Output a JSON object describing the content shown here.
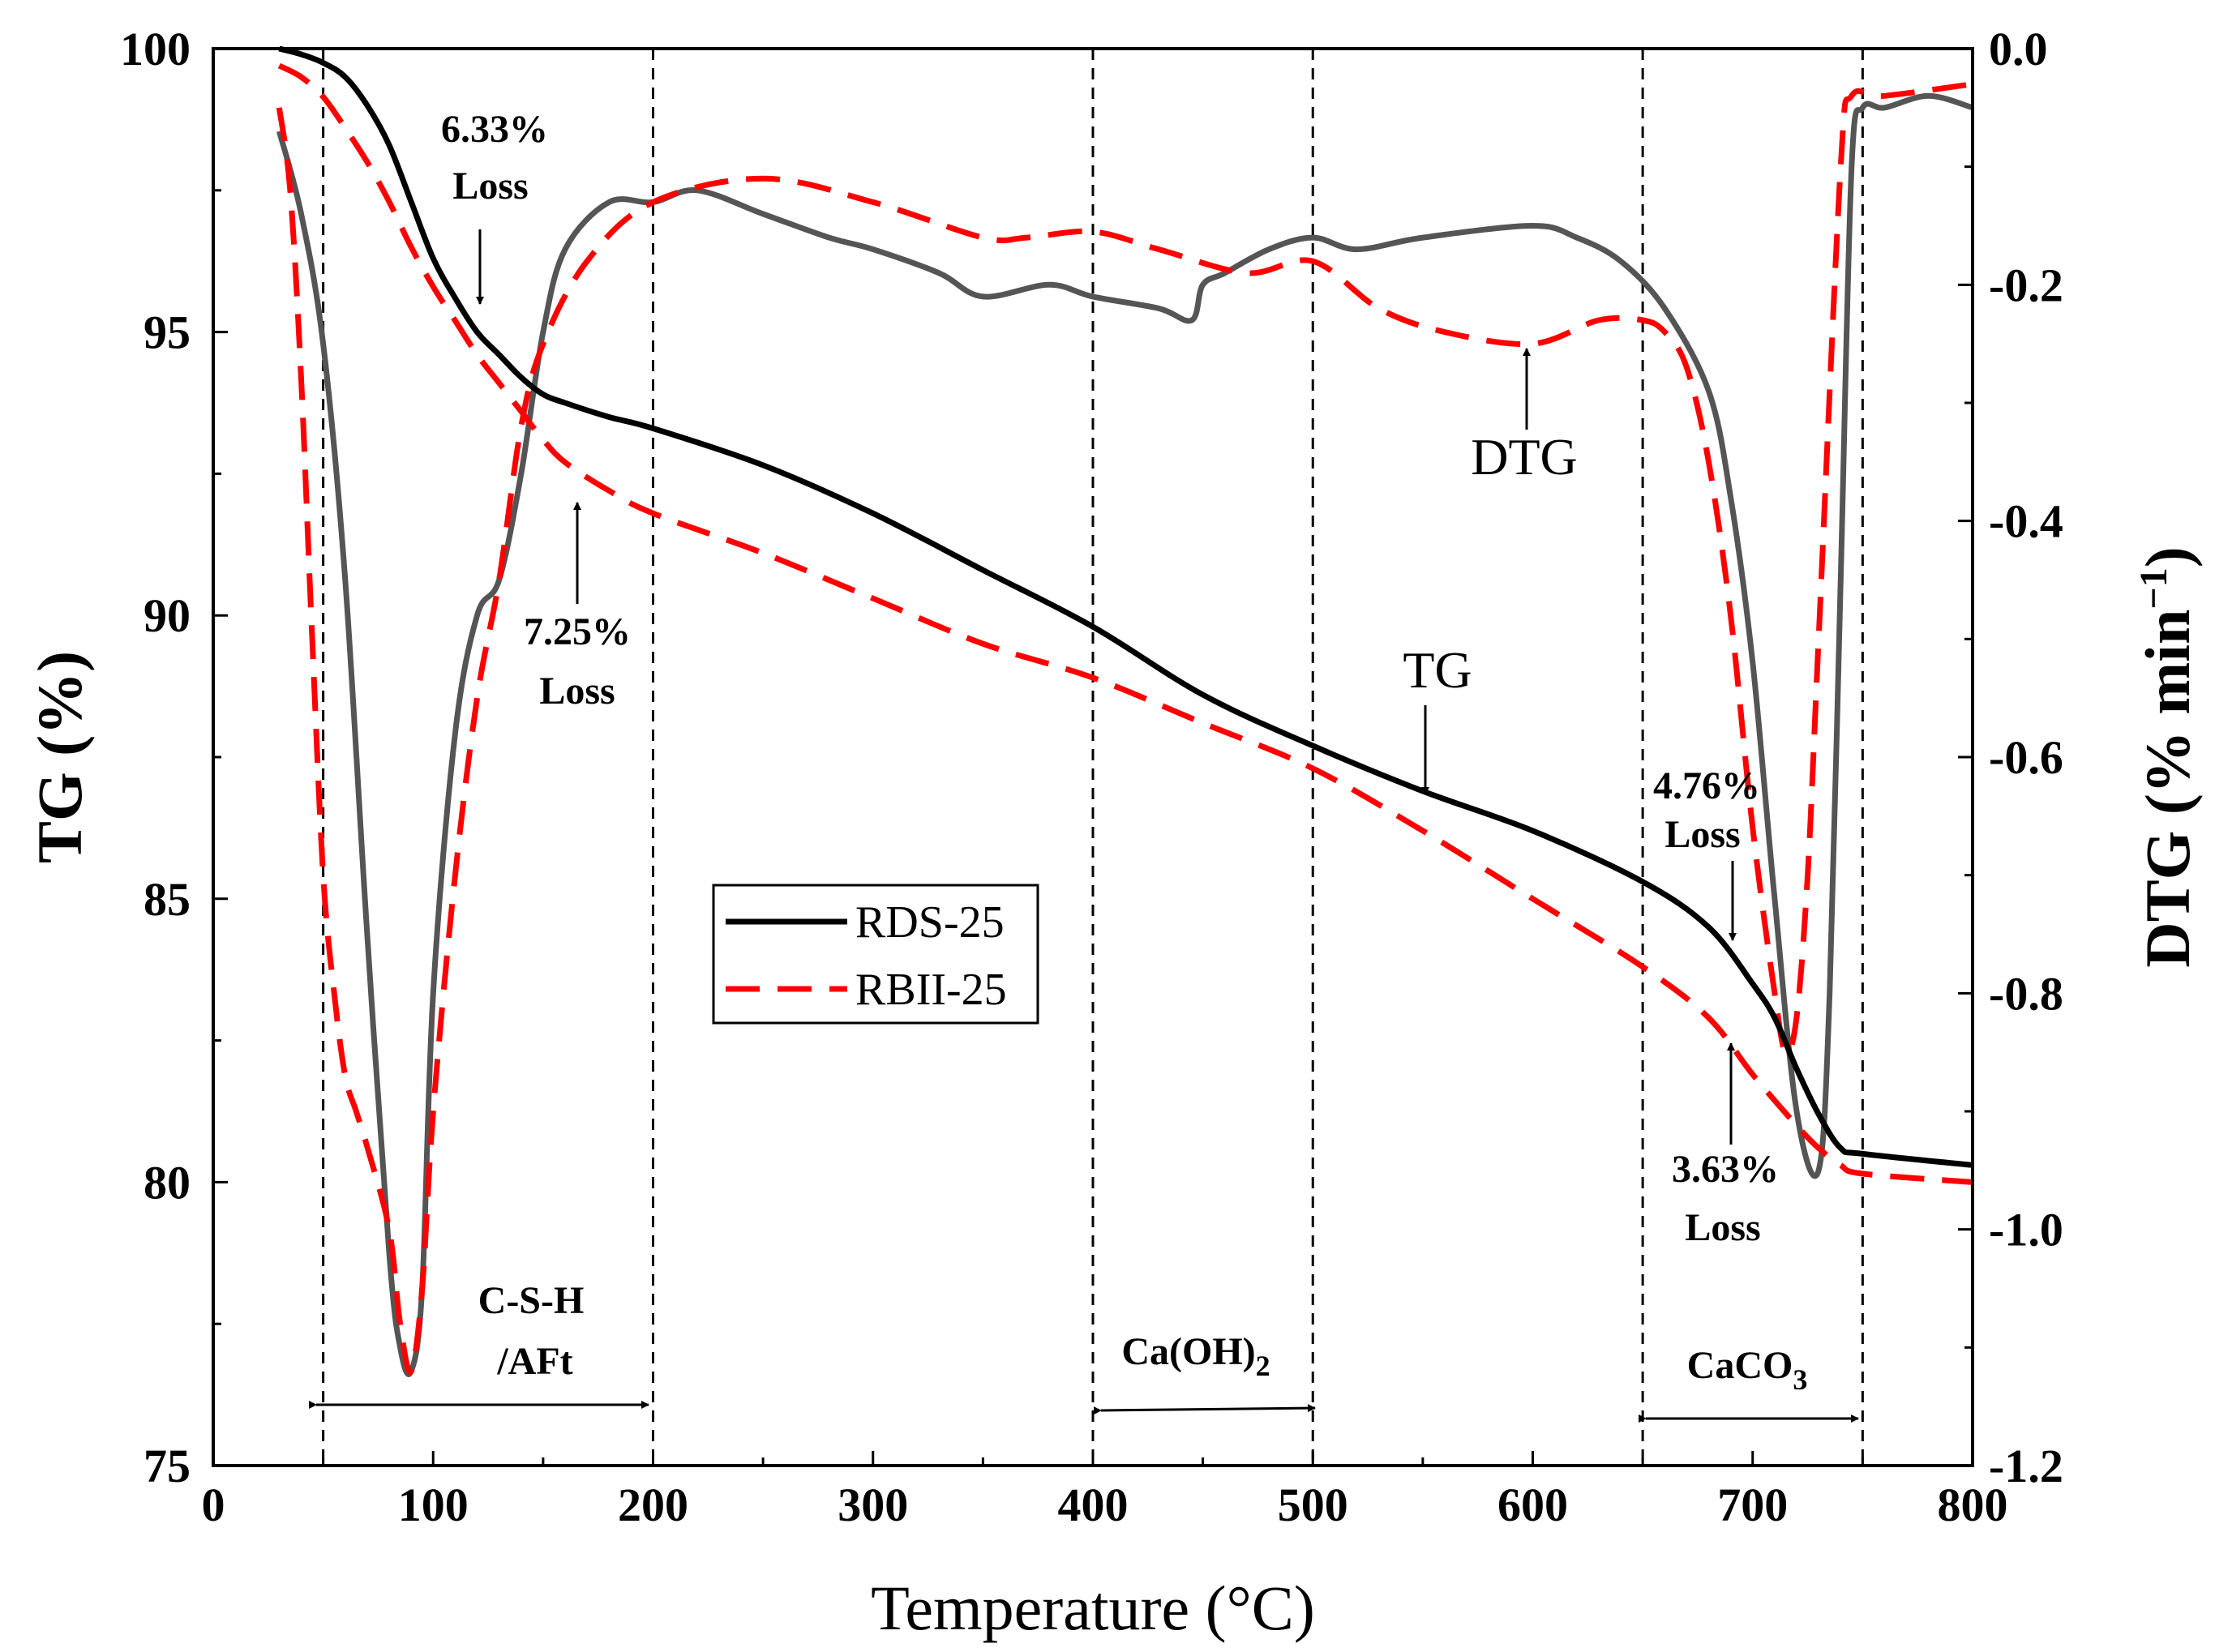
{
  "chart_data": {
    "type": "line",
    "title": "",
    "xlabel": "Temperature (°C)",
    "ylabel": "TG (%)",
    "y2label_main": "DTG (% min",
    "y2label_sup": "−1",
    "y2label_end": ")",
    "xlim": [
      0,
      800
    ],
    "ylim": [
      75,
      100
    ],
    "y2lim": [
      -1.2,
      0.0
    ],
    "xticks": [
      0,
      100,
      200,
      300,
      400,
      500,
      600,
      700,
      800
    ],
    "yticks": [
      75,
      80,
      85,
      90,
      95,
      100
    ],
    "y2ticks": [
      "0.0",
      "-0.2",
      "-0.4",
      "-0.6",
      "-0.8",
      "-1.0",
      "-1.2"
    ],
    "region_lines_x": [
      50,
      200,
      400,
      500,
      650,
      750
    ],
    "legend": [
      {
        "name": "RDS-25",
        "color": "#000000",
        "style": "solid"
      },
      {
        "name": "RBII-25",
        "color": "#ff0000",
        "style": "dashed"
      }
    ],
    "series": [
      {
        "name": "RDS-25 TG",
        "axis": "left",
        "color": "#000000",
        "style": "solid",
        "x": [
          30,
          40,
          50,
          60,
          70,
          80,
          90,
          100,
          110,
          120,
          130,
          140,
          150,
          160,
          180,
          200,
          250,
          300,
          350,
          400,
          450,
          500,
          550,
          600,
          650,
          680,
          700,
          710,
          720,
          730,
          740,
          750,
          800
        ],
        "y": [
          100,
          99.9,
          99.75,
          99.5,
          99.0,
          98.3,
          97.3,
          96.3,
          95.6,
          95.0,
          94.6,
          94.2,
          93.9,
          93.75,
          93.5,
          93.3,
          92.65,
          91.8,
          90.8,
          89.8,
          88.6,
          87.7,
          86.9,
          86.2,
          85.3,
          84.5,
          83.5,
          82.9,
          82.0,
          81.2,
          80.6,
          80.5,
          80.3
        ]
      },
      {
        "name": "RBII-25 TG",
        "axis": "left",
        "color": "#ff0000",
        "style": "dashed",
        "x": [
          30,
          40,
          50,
          60,
          70,
          80,
          90,
          100,
          110,
          120,
          130,
          140,
          150,
          160,
          180,
          200,
          250,
          300,
          350,
          400,
          450,
          500,
          550,
          600,
          650,
          680,
          700,
          720,
          730,
          740,
          750,
          800
        ],
        "y": [
          99.7,
          99.5,
          99.15,
          98.6,
          98.0,
          97.3,
          96.5,
          95.8,
          95.2,
          94.6,
          94.1,
          93.6,
          93.1,
          92.7,
          92.2,
          91.8,
          91.1,
          90.3,
          89.5,
          88.9,
          88.1,
          87.3,
          86.2,
          85.0,
          83.8,
          82.9,
          81.9,
          81.0,
          80.6,
          80.3,
          80.15,
          80.0
        ]
      },
      {
        "name": "RDS-25 DTG",
        "axis": "right",
        "color": "#555555",
        "style": "solid",
        "x": [
          30,
          40,
          50,
          60,
          70,
          80,
          85,
          90,
          95,
          100,
          110,
          120,
          130,
          140,
          150,
          160,
          180,
          200,
          220,
          250,
          280,
          300,
          330,
          350,
          380,
          400,
          430,
          445,
          450,
          460,
          480,
          500,
          520,
          550,
          600,
          620,
          640,
          660,
          680,
          690,
          700,
          710,
          720,
          730,
          735,
          740,
          745,
          750,
          760,
          780,
          800
        ],
        "y": [
          -0.07,
          -0.14,
          -0.25,
          -0.45,
          -0.75,
          -1.02,
          -1.1,
          -1.12,
          -1.05,
          -0.8,
          -0.58,
          -0.48,
          -0.45,
          -0.36,
          -0.24,
          -0.17,
          -0.13,
          -0.13,
          -0.12,
          -0.14,
          -0.16,
          -0.17,
          -0.19,
          -0.21,
          -0.2,
          -0.21,
          -0.22,
          -0.23,
          -0.2,
          -0.19,
          -0.17,
          -0.16,
          -0.17,
          -0.16,
          -0.15,
          -0.16,
          -0.18,
          -0.22,
          -0.29,
          -0.38,
          -0.52,
          -0.72,
          -0.9,
          -0.95,
          -0.8,
          -0.45,
          -0.1,
          -0.05,
          -0.05,
          -0.04,
          -0.05
        ]
      },
      {
        "name": "RBII-25 DTG",
        "axis": "right",
        "color": "#ff0000",
        "style": "dashed",
        "x": [
          30,
          35,
          40,
          45,
          50,
          55,
          60,
          65,
          70,
          80,
          85,
          90,
          95,
          100,
          110,
          120,
          130,
          140,
          150,
          170,
          200,
          250,
          300,
          350,
          370,
          400,
          430,
          470,
          500,
          530,
          560,
          600,
          630,
          650,
          660,
          670,
          680,
          690,
          700,
          710,
          715,
          720,
          725,
          730,
          740,
          745,
          760,
          800
        ],
        "y": [
          -0.05,
          -0.12,
          -0.28,
          -0.5,
          -0.7,
          -0.8,
          -0.87,
          -0.9,
          -0.93,
          -1.0,
          -1.08,
          -1.12,
          -1.05,
          -0.9,
          -0.7,
          -0.55,
          -0.45,
          -0.32,
          -0.25,
          -0.18,
          -0.13,
          -0.11,
          -0.13,
          -0.16,
          -0.16,
          -0.155,
          -0.17,
          -0.19,
          -0.18,
          -0.22,
          -0.24,
          -0.25,
          -0.23,
          -0.23,
          -0.24,
          -0.27,
          -0.35,
          -0.48,
          -0.66,
          -0.8,
          -0.85,
          -0.82,
          -0.7,
          -0.5,
          -0.1,
          -0.04,
          -0.04,
          -0.03
        ]
      }
    ],
    "annotations": [
      {
        "line1": "6.33%",
        "line2": "Loss"
      },
      {
        "line1": "7.25%",
        "line2": "Loss"
      },
      {
        "line1": "4.76%",
        "line2": "Loss"
      },
      {
        "line1": "3.63%",
        "line2": "Loss"
      },
      {
        "line1": "TG"
      },
      {
        "line1": "DTG"
      }
    ],
    "regions": [
      {
        "line1": "C-S-H",
        "line2": "/AFt"
      },
      {
        "main": "Ca(OH)",
        "sub": "2"
      },
      {
        "main": "CaCO",
        "sub": "3"
      }
    ]
  }
}
